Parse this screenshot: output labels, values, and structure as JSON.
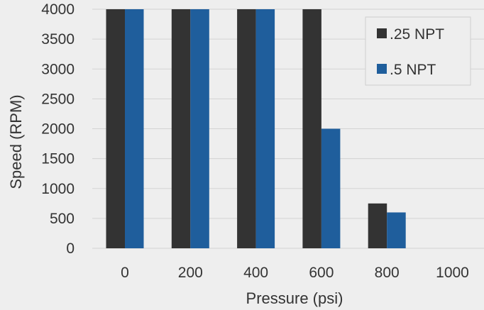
{
  "chart_data": {
    "type": "bar",
    "categories": [
      "0",
      "200",
      "400",
      "600",
      "800",
      "1000"
    ],
    "series": [
      {
        "name": ".25 NPT",
        "color": "#333333",
        "values": [
          4000,
          4000,
          4000,
          4000,
          750,
          0
        ]
      },
      {
        "name": ".5 NPT",
        "color": "#1f5e9c",
        "values": [
          4000,
          4000,
          4000,
          2000,
          600,
          0
        ]
      }
    ],
    "xlabel": "Pressure (psi)",
    "ylabel": "Speed (RPM)",
    "ylim": [
      0,
      4000
    ],
    "yticks": [
      "0",
      "500",
      "1000",
      "1500",
      "2000",
      "2500",
      "3000",
      "3500",
      "4000"
    ],
    "grid": true,
    "legend_position": "top-right"
  }
}
